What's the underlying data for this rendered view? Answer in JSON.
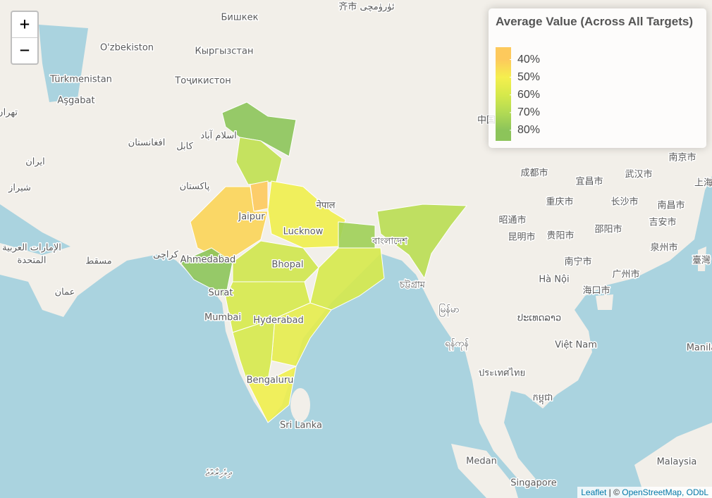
{
  "zoom": {
    "in": "+",
    "out": "−"
  },
  "legend": {
    "title": "Average Value (Across All Targets)",
    "range": [
      33,
      86
    ],
    "ticks": [
      {
        "value": 40,
        "label": "40%"
      },
      {
        "value": 50,
        "label": "50%"
      },
      {
        "value": 60,
        "label": "60%"
      },
      {
        "value": 70,
        "label": "70%"
      },
      {
        "value": 80,
        "label": "80%"
      }
    ],
    "colors": [
      "#fdc95c",
      "#f5ef4e",
      "#d6e94b",
      "#b2da54",
      "#8cc45a"
    ]
  },
  "regions": {
    "values": [
      80,
      66,
      38,
      43,
      52,
      80,
      62,
      60,
      75,
      60,
      55,
      60,
      52,
      68
    ]
  },
  "map_labels": [
    "齐市 ئۈرۈمچى",
    "Бишкек",
    "O'zbekiston",
    "Кыргызстан",
    "Türkmenistan",
    "Aşgabat",
    "Тоҷикистон",
    "افغانستان",
    "کابل",
    "اسلام آباد",
    "پاکستان",
    "ایران",
    "تهران",
    "شیراز",
    "الإمارات العربية",
    "المتحدة",
    "مسقط",
    "عمان",
    "کراچی",
    "Jaipur",
    "Lucknow",
    "Bhopal",
    "Ahmedabad",
    "Surat",
    "Mumbai",
    "Hyderabad",
    "Bengaluru",
    "Sri Lanka",
    "नेपाल",
    "বাংলাদেশ",
    "চট্টগ্রাম",
    "မြန်မာ",
    "ရန်ကုန်",
    "ประเทศไทย",
    "ປະເທດລາວ",
    "Việt Nam",
    "កម្ពុជា",
    "Hà Nội",
    "南宁市",
    "海口市",
    "广州市",
    "重庆市",
    "成都市",
    "昆明市",
    "贵阳市",
    "长沙市",
    "武汉市",
    "南昌市",
    "南京市",
    "上海",
    "邵阳市",
    "宜昌市",
    "吉安市",
    "泉州市",
    "臺灣",
    "昭通市",
    "中国",
    "Medan",
    "Singapore",
    "Malaysia",
    "Manila",
    "ދިވެހިރާއްޖެ"
  ],
  "attribution": {
    "leaflet": "Leaflet",
    "separator": "| ©",
    "osm": "OpenStreetMap, ODbL"
  }
}
